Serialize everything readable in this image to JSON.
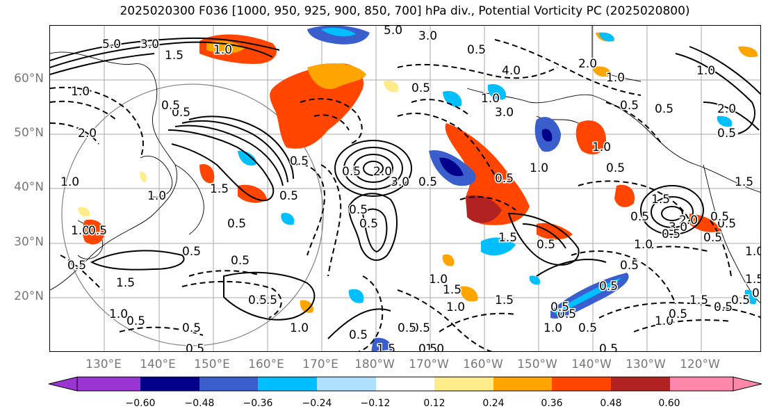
{
  "title": "2025020300 F036 [1000, 950, 925, 900, 850, 700] hPa div., Potential Vorticity PC (2025020800)",
  "lat_labels": [
    "60°N",
    "50°N",
    "40°N",
    "30°N",
    "20°N"
  ],
  "lon_labels": [
    "130°E",
    "140°E",
    "150°E",
    "160°E",
    "170°E",
    "180°W",
    "170°W",
    "160°W",
    "150°W",
    "140°W",
    "130°W",
    "120°W"
  ],
  "colorbar": {
    "ticks": [
      "−0.60",
      "−0.48",
      "−0.36",
      "−0.24",
      "−0.12",
      "0.12",
      "0.24",
      "0.36",
      "0.48",
      "0.60"
    ],
    "colors": [
      "#9a35d4",
      "#00008b",
      "#3a5fcd",
      "#00bfff",
      "#b0e2ff",
      "#ffffff",
      "#ffec8b",
      "#ffa500",
      "#ff4500",
      "#b22222",
      "#ff88aa"
    ]
  },
  "contour_labels": [
    "5.0",
    "3.0",
    "1.5",
    "0.5",
    "1.0",
    "2.0",
    "1.0",
    "0.5",
    "1.5",
    "1.0",
    "0.5",
    "1.5",
    "0.5",
    "0.5",
    "0.5",
    "0.5",
    "0.5",
    "0.5",
    "1.0",
    "0.5",
    "1.0",
    "1.0",
    "2.0",
    "3.0",
    "0.5",
    "0.5",
    "0.5",
    "1.0",
    "1.5",
    "1.0",
    "0.5",
    "1.0",
    "0.5",
    "1.5",
    "0.5",
    "1.0",
    "1.5",
    "0.5",
    "5.0",
    "3.0",
    "1.0",
    "3.0",
    "4.0",
    "2.0",
    "1.0",
    "0.5",
    "0.5",
    "1.0",
    "2.0",
    "0.5",
    "1.5",
    "0.5",
    "0.5",
    "2.0",
    "3.0",
    "0.5",
    "1.0",
    "0.5",
    "0.5",
    "1.5",
    "1.0",
    "0.5",
    "0.5",
    "0.5",
    "0.5",
    "1.0",
    "0.5",
    "1.5",
    "0.5",
    "0.5",
    "0.5",
    "1.0",
    "1.5",
    "0.5",
    "0.5",
    "1.0",
    "0.5",
    "0.5",
    "1.5",
    "0.5",
    "0.5",
    "0.5",
    "1.0",
    "0.5",
    "0.5",
    "0.5",
    "0.5",
    "0.5"
  ]
}
